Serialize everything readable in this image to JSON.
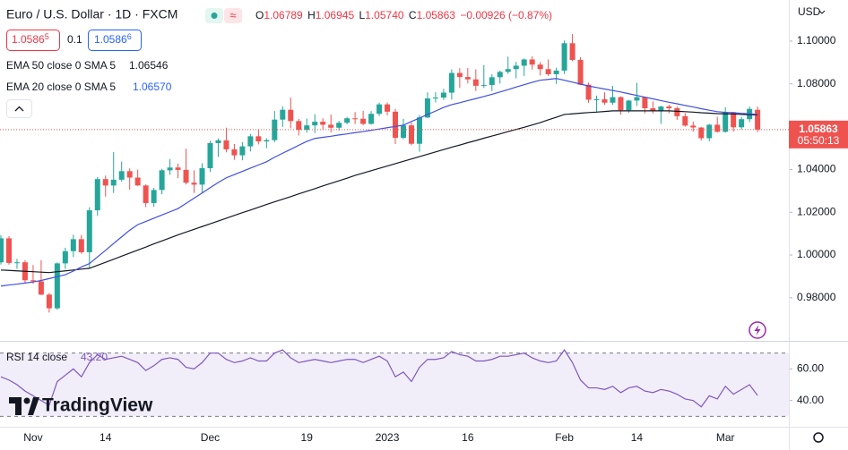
{
  "header": {
    "title": "Euro / U.S. Dollar · 1D · FXCM",
    "ohlc": [
      {
        "letter": "O",
        "value": "1.06789"
      },
      {
        "letter": "H",
        "value": "1.06945"
      },
      {
        "letter": "L",
        "value": "1.05740"
      },
      {
        "letter": "C",
        "value": "1.05863"
      }
    ],
    "change": "−0.00926 (−0.87%)",
    "sell": {
      "price": "1.0586",
      "pip": "5"
    },
    "spread": "0.1",
    "buy": {
      "price": "1.0586",
      "pip": "6"
    },
    "currency": "USD",
    "price_tag": "1.05863",
    "countdown": "05:50:13",
    "logo": "TradingView"
  },
  "chart_data": [
    {
      "type": "candlestick",
      "categories": [
        null,
        null,
        null,
        null,
        "Nov",
        null,
        null,
        null,
        null,
        null,
        null,
        null,
        null,
        "14",
        null,
        null,
        null,
        null,
        null,
        null,
        null,
        null,
        null,
        null,
        null,
        null,
        "Dec",
        null,
        null,
        null,
        null,
        null,
        null,
        null,
        null,
        null,
        null,
        null,
        "19",
        null,
        null,
        null,
        null,
        null,
        null,
        null,
        null,
        null,
        "2023",
        null,
        null,
        null,
        null,
        null,
        null,
        null,
        null,
        null,
        "16",
        null,
        null,
        null,
        null,
        null,
        null,
        null,
        null,
        null,
        null,
        null,
        "Feb",
        null,
        null,
        null,
        null,
        null,
        null,
        null,
        null,
        "14",
        null,
        null,
        null,
        null,
        null,
        null,
        null,
        null,
        null,
        null,
        "Mar",
        null,
        null,
        null,
        null
      ],
      "open": [
        0.9966,
        1.0078,
        0.9963,
        0.9966,
        0.9882,
        0.9877,
        0.9815,
        0.9751,
        0.9961,
        1.0018,
        1.0074,
        1.0013,
        1.0209,
        1.0355,
        1.0325,
        1.0352,
        1.0392,
        1.0362,
        1.0325,
        1.0243,
        1.0304,
        1.0396,
        1.0409,
        1.0398,
        1.0338,
        1.0329,
        1.0406,
        1.0523,
        1.0536,
        1.0494,
        1.0466,
        1.0508,
        1.0555,
        1.0531,
        1.0537,
        1.0633,
        1.0679,
        1.0626,
        1.0585,
        1.0606,
        1.0623,
        1.0609,
        1.0595,
        1.0618,
        1.0639,
        1.0637,
        1.0613,
        1.066,
        1.0704,
        1.067,
        1.0548,
        1.0606,
        1.052,
        1.0643,
        1.0732,
        1.0736,
        1.0759,
        1.0851,
        1.0832,
        1.0821,
        1.0791,
        1.0795,
        1.0831,
        1.0856,
        1.0869,
        1.0885,
        1.0914,
        1.089,
        1.0869,
        1.0845,
        1.0862,
        1.099,
        1.0912,
        1.0796,
        1.0726,
        1.0728,
        1.0712,
        1.0738,
        1.0677,
        1.0722,
        1.0738,
        1.0686,
        1.0673,
        1.0694,
        1.0686,
        1.0649,
        1.0605,
        1.0596,
        1.0546,
        1.0609,
        1.0576,
        1.0668,
        1.0597,
        1.0635,
        1.06789
      ],
      "high": [
        1.0093,
        1.0088,
        0.9982,
        0.9976,
        0.9953,
        0.9976,
        0.9823,
        0.9965,
        1.0034,
        1.0095,
        1.0094,
        1.0223,
        1.0364,
        1.0371,
        1.0481,
        1.0437,
        1.0405,
        1.0399,
        1.033,
        1.0314,
        1.0403,
        1.0448,
        1.0427,
        1.0497,
        1.0396,
        1.0429,
        1.0534,
        1.0545,
        1.0595,
        1.0519,
        1.0528,
        1.0566,
        1.0588,
        1.0546,
        1.0673,
        1.0695,
        1.0736,
        1.0636,
        1.0638,
        1.0658,
        1.0639,
        1.0657,
        1.0627,
        1.0645,
        1.0668,
        1.0674,
        1.0673,
        1.0712,
        1.0713,
        1.0683,
        1.0637,
        1.0619,
        1.0655,
        1.076,
        1.0761,
        1.0777,
        1.0868,
        1.0873,
        1.0874,
        1.0868,
        1.0888,
        1.0845,
        1.0862,
        1.0927,
        1.0903,
        1.0919,
        1.0929,
        1.0902,
        1.0914,
        1.0876,
        1.1003,
        1.1033,
        1.0925,
        1.0806,
        1.0745,
        1.076,
        1.079,
        1.0741,
        1.0725,
        1.0805,
        1.074,
        1.0718,
        1.0698,
        1.0703,
        1.0694,
        1.0664,
        1.0624,
        1.0598,
        1.0613,
        1.0646,
        1.0691,
        1.0669,
        1.0646,
        1.0694,
        1.06945
      ],
      "low": [
        0.9956,
        0.9955,
        0.9936,
        0.9871,
        0.9865,
        0.9812,
        0.9731,
        0.9744,
        0.9935,
        0.999,
        1.0006,
        0.9935,
        1.0183,
        1.0273,
        1.029,
        1.0343,
        1.0305,
        1.0323,
        1.0224,
        1.0225,
        1.0284,
        1.0375,
        1.0359,
        1.033,
        1.029,
        1.0288,
        1.0388,
        1.0459,
        1.048,
        1.0445,
        1.0443,
        1.0484,
        1.0517,
        1.0499,
        1.0527,
        1.0599,
        1.0593,
        1.0559,
        1.0572,
        1.057,
        1.0585,
        1.0573,
        1.0582,
        1.0611,
        1.0612,
        1.0607,
        1.061,
        1.065,
        1.0653,
        1.0519,
        1.054,
        1.0513,
        1.0483,
        1.064,
        1.0713,
        1.0725,
        1.0727,
        1.0781,
        1.0802,
        1.0767,
        1.0781,
        1.0766,
        1.0801,
        1.0847,
        1.0826,
        1.0837,
        1.0867,
        1.0839,
        1.0837,
        1.08,
        1.0846,
        1.0906,
        1.0794,
        1.0711,
        1.0669,
        1.0702,
        1.0702,
        1.0656,
        1.0665,
        1.0697,
        1.0662,
        1.0662,
        1.0613,
        1.0663,
        1.0632,
        1.06,
        1.0577,
        1.0535,
        1.0532,
        1.0573,
        1.0572,
        1.0577,
        1.0587,
        1.0621,
        1.0574
      ],
      "close": [
        1.0078,
        0.9963,
        0.9966,
        0.9882,
        0.9877,
        0.9815,
        0.9751,
        0.9961,
        1.0018,
        1.0074,
        1.0013,
        1.0209,
        1.0355,
        1.0325,
        1.0352,
        1.0392,
        1.0362,
        1.0325,
        1.0243,
        1.0304,
        1.0396,
        1.0409,
        1.0398,
        1.0338,
        1.0329,
        1.0406,
        1.0523,
        1.0536,
        1.0494,
        1.0466,
        1.0508,
        1.0555,
        1.0531,
        1.0537,
        1.0633,
        1.0679,
        1.0626,
        1.0585,
        1.0606,
        1.0623,
        1.0609,
        1.0595,
        1.0618,
        1.0639,
        1.0637,
        1.0613,
        1.066,
        1.0704,
        1.067,
        1.0548,
        1.0606,
        1.052,
        1.0643,
        1.0732,
        1.0736,
        1.0759,
        1.0851,
        1.0832,
        1.0821,
        1.0791,
        1.0795,
        1.0831,
        1.0856,
        1.0869,
        1.0885,
        1.0914,
        1.089,
        1.0869,
        1.0845,
        1.0862,
        1.099,
        1.0912,
        1.0796,
        1.0726,
        1.0728,
        1.0712,
        1.0738,
        1.0677,
        1.0722,
        1.0738,
        1.0686,
        1.0673,
        1.0694,
        1.0686,
        1.0649,
        1.0605,
        1.0596,
        1.0546,
        1.0609,
        1.0576,
        1.0668,
        1.0597,
        1.0635,
        1.0683,
        1.05863
      ],
      "up_color": "#26a69a",
      "down_color": "#ef5350",
      "series": [
        {
          "name": "EMA 50 close 0 SMA 5",
          "last_label": "1.06546",
          "color": "#131722",
          "values": [
            0.993,
            0.9928,
            0.9926,
            0.9924,
            0.9922,
            0.992,
            0.9918,
            0.9922,
            0.9926,
            0.993,
            0.9934,
            0.9938,
            0.9952,
            0.9966,
            0.998,
            0.9995,
            1.0009,
            1.0023,
            1.0037,
            1.0052,
            1.0066,
            1.008,
            1.0094,
            1.0107,
            1.012,
            1.0133,
            1.0146,
            1.0159,
            1.0172,
            1.0185,
            1.0198,
            1.021,
            1.0223,
            1.0236,
            1.0249,
            1.0261,
            1.0273,
            1.0286,
            1.0298,
            1.031,
            1.0323,
            1.0335,
            1.0347,
            1.0359,
            1.0372,
            1.0383,
            1.0394,
            1.0405,
            1.0416,
            1.0427,
            1.0438,
            1.0449,
            1.046,
            1.0471,
            1.0482,
            1.0493,
            1.0504,
            1.0514,
            1.0525,
            1.0535,
            1.0546,
            1.0556,
            1.0566,
            1.0577,
            1.0587,
            1.0597,
            1.0608,
            1.0619,
            1.0632,
            1.0644,
            1.0657,
            1.066,
            1.0663,
            1.0666,
            1.0668,
            1.0671,
            1.0674,
            1.0674,
            1.0674,
            1.0674,
            1.0674,
            1.0674,
            1.0674,
            1.0674,
            1.0672,
            1.067,
            1.0668,
            1.0665,
            1.0663,
            1.0661,
            1.066,
            1.0659,
            1.0657,
            1.0656,
            1.06546
          ]
        },
        {
          "name": "EMA 20 close 0 SMA 5",
          "last_label": "1.06570",
          "color": "#3f4fe0",
          "values": [
            0.9855,
            0.986,
            0.9864,
            0.9869,
            0.9874,
            0.9881,
            0.989,
            0.9899,
            0.9908,
            0.9925,
            0.9944,
            0.996,
            0.9991,
            1.0022,
            1.0054,
            1.0085,
            1.0116,
            1.0142,
            1.0157,
            1.0172,
            1.0187,
            1.0202,
            1.0217,
            1.0241,
            1.0266,
            1.029,
            1.0315,
            1.0339,
            1.0361,
            1.0376,
            1.0391,
            1.0406,
            1.0421,
            1.0436,
            1.0457,
            1.0476,
            1.0494,
            1.0513,
            1.0531,
            1.0545,
            1.055,
            1.0555,
            1.0561,
            1.0566,
            1.0572,
            1.0577,
            1.0583,
            1.0589,
            1.0595,
            1.0601,
            1.0607,
            1.0624,
            1.064,
            1.0657,
            1.0673,
            1.069,
            1.0703,
            1.0712,
            1.0722,
            1.0731,
            1.0741,
            1.0751,
            1.0762,
            1.0773,
            1.0785,
            1.0796,
            1.0807,
            1.0817,
            1.0821,
            1.0825,
            1.0817,
            1.0808,
            1.0799,
            1.079,
            1.0783,
            1.0776,
            1.0769,
            1.0762,
            1.0754,
            1.0746,
            1.0738,
            1.073,
            1.0722,
            1.0714,
            1.0707,
            1.0699,
            1.0692,
            1.0684,
            1.0677,
            1.067,
            1.0667,
            1.0665,
            1.0662,
            1.066,
            1.0657
          ]
        }
      ],
      "ylim": [
        0.9603,
        1.1192
      ],
      "yticks": [
        {
          "value": 0.98,
          "label": "0.98000"
        },
        {
          "value": 1.0,
          "label": "1.00000"
        },
        {
          "value": 1.02,
          "label": "1.02000"
        },
        {
          "value": 1.04,
          "label": "1.04000"
        },
        {
          "value": 1.06,
          "label": "1.06000"
        },
        {
          "value": 1.08,
          "label": "1.08000"
        },
        {
          "value": 1.1,
          "label": "1.10000"
        }
      ]
    },
    {
      "type": "line",
      "series": [
        {
          "name": "RSI 14 close",
          "last_label": "43.20",
          "color": "#7e57c2",
          "values": [
            55,
            53,
            50,
            46,
            43,
            40,
            37,
            52,
            56,
            60,
            55,
            64,
            69,
            66,
            67,
            68,
            66,
            64,
            59,
            62,
            66,
            67,
            66,
            61,
            60,
            64,
            70,
            70,
            66,
            64,
            65,
            67,
            65,
            65,
            70,
            72,
            67,
            64,
            65,
            66,
            65,
            64,
            65,
            66,
            66,
            64,
            66,
            68,
            65,
            55,
            58,
            52,
            61,
            66,
            66,
            67,
            71,
            69,
            68,
            65,
            65,
            66,
            68,
            68,
            69,
            70,
            67,
            65,
            64,
            65,
            72,
            64,
            53,
            48,
            48,
            47,
            49,
            45,
            48,
            49,
            46,
            45,
            47,
            46,
            44,
            41,
            40,
            36,
            43,
            41,
            49,
            44,
            47,
            50,
            43.2
          ]
        }
      ],
      "band": [
        30,
        70
      ],
      "ylim": [
        24,
        76.6
      ],
      "yticks": [
        {
          "value": 40,
          "label": "40.00"
        },
        {
          "value": 60,
          "label": "60.00"
        }
      ]
    }
  ]
}
